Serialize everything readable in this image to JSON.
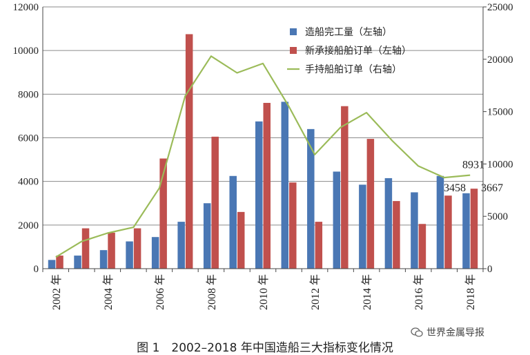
{
  "chart_data": {
    "type": "bar+line",
    "categories": [
      "2002",
      "2003",
      "2004",
      "2005",
      "2006",
      "2007",
      "2008",
      "2009",
      "2010",
      "2011",
      "2012",
      "2013",
      "2014",
      "2015",
      "2016",
      "2017",
      "2018"
    ],
    "x_tick_labels": [
      "2002 年",
      "2004 年",
      "2006 年",
      "2008 年",
      "2010 年",
      "2012 年",
      "2014 年",
      "2016 年",
      "2018 年"
    ],
    "series": [
      {
        "name": "造船完工量（左轴）",
        "type": "bar",
        "axis": "left",
        "color": "#4a77b4",
        "values": [
          400,
          600,
          850,
          1250,
          1450,
          2150,
          3000,
          4250,
          6750,
          7650,
          6400,
          4450,
          3850,
          4150,
          3500,
          4250,
          3458
        ]
      },
      {
        "name": "新承接船舶订单（左轴）",
        "type": "bar",
        "axis": "left",
        "color": "#c0504d",
        "values": [
          600,
          1850,
          1650,
          1850,
          5050,
          10750,
          6050,
          2600,
          7600,
          3950,
          2150,
          7450,
          5950,
          3100,
          2050,
          3350,
          3667
        ]
      },
      {
        "name": "手持船舶订单（右轴）",
        "type": "line",
        "axis": "right",
        "color": "#9bbb59",
        "values": [
          1100,
          2600,
          3400,
          3950,
          7700,
          16500,
          20300,
          18700,
          19600,
          15500,
          10900,
          13500,
          14900,
          12200,
          9800,
          8700,
          8931
        ]
      }
    ],
    "left_axis": {
      "min": 0,
      "max": 12000,
      "ticks": [
        "0",
        "2000",
        "4000",
        "6000",
        "8000",
        "10000",
        "12000"
      ]
    },
    "right_axis": {
      "min": 0,
      "max": 25000,
      "ticks": [
        "0",
        "5000",
        "10000",
        "15000",
        "20000",
        "25000"
      ]
    },
    "data_labels": [
      "8931",
      "3458",
      "3667"
    ],
    "legend_position": "top-right",
    "gridlines": true
  },
  "caption": "图 1　2002–2018 年中国造船三大指标变化情况",
  "watermark": "世界金属导报"
}
